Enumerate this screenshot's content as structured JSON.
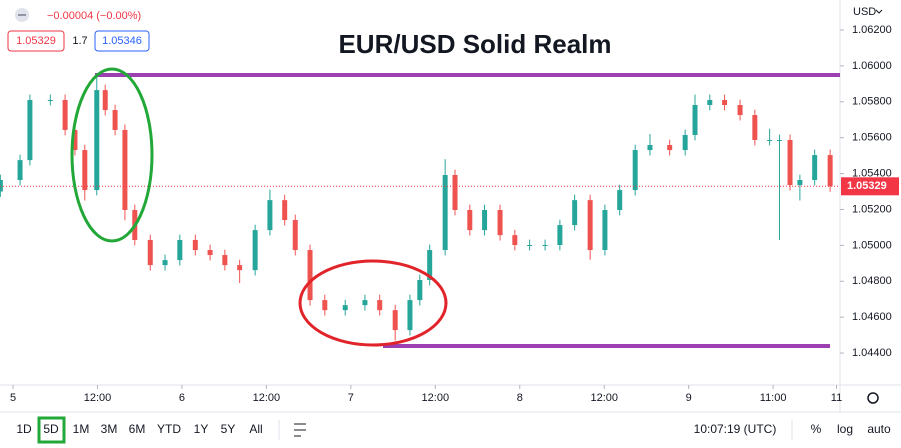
{
  "header": {
    "change": "−0.00004 (−0.00%)",
    "bid": "1.05329",
    "spread": "1.7",
    "ask": "1.05346",
    "currency": "USD"
  },
  "chart_data": {
    "type": "candlestick",
    "title": "EUR/USD Solid Realm",
    "x": [
      -1.8,
      1.0,
      2.4,
      5.3,
      7.4,
      8.8,
      10.2,
      11.9,
      13.1,
      14.5,
      15.9,
      17.3,
      19.5,
      21.6,
      23.7,
      25.9,
      28.0,
      30.1,
      32.2,
      34.4,
      36.5,
      38.6,
      40.1,
      42.2,
      44.3,
      47.2,
      50.0,
      52.1,
      54.3,
      56.4,
      57.8,
      59.2,
      61.4,
      62.8,
      64.9,
      67.0,
      69.2,
      71.3,
      73.4,
      75.6,
      77.7,
      79.8,
      82.0,
      84.1,
      86.2,
      88.4,
      90.5,
      93.3,
      95.5,
      96.9,
      99.0,
      101.1,
      103.3,
      105.4,
      107.5,
      108.9,
      110.4,
      111.8,
      113.9,
      116.1
    ],
    "open": [
      1.053,
      1.05364,
      1.05475,
      1.0581,
      1.0581,
      1.05643,
      1.05531,
      1.05308,
      1.05865,
      1.05754,
      1.05643,
      1.05197,
      1.0503,
      1.0489,
      1.04918,
      1.0503,
      1.04974,
      1.04946,
      1.0489,
      1.04862,
      1.05085,
      1.05252,
      1.05141,
      1.04974,
      1.04695,
      1.04639,
      1.04667,
      1.04695,
      1.04639,
      1.04528,
      1.04695,
      1.04807,
      1.04974,
      1.05392,
      1.05197,
      1.05085,
      1.05197,
      1.05057,
      1.05002,
      1.05002,
      1.05002,
      1.05113,
      1.05252,
      1.04974,
      1.05197,
      1.05308,
      1.05531,
      1.05559,
      1.05531,
      1.05615,
      1.05782,
      1.0581,
      1.05782,
      1.05726,
      1.05587,
      1.05587,
      1.05587,
      1.05336,
      1.05364,
      1.05503
    ],
    "high": [
      1.05394,
      1.05505,
      1.0584,
      1.0584,
      1.0584,
      1.05673,
      1.05561,
      1.05949,
      1.05895,
      1.05784,
      1.05673,
      1.05227,
      1.0506,
      1.04948,
      1.0506,
      1.0506,
      1.05004,
      1.04976,
      1.0492,
      1.05115,
      1.0531,
      1.05282,
      1.05171,
      1.05004,
      1.04725,
      1.04697,
      1.04725,
      1.04725,
      1.04669,
      1.04725,
      1.04837,
      1.05004,
      1.0548,
      1.05422,
      1.05227,
      1.05227,
      1.05227,
      1.05087,
      1.05032,
      1.05032,
      1.05143,
      1.05282,
      1.05282,
      1.05227,
      1.05338,
      1.05561,
      1.0562,
      1.05589,
      1.05645,
      1.0584,
      1.0584,
      1.0584,
      1.05812,
      1.05756,
      1.0565,
      1.05617,
      1.05617,
      1.05394,
      1.05533,
      1.05533
    ],
    "low": [
      1.0527,
      1.05334,
      1.05445,
      1.0578,
      1.05613,
      1.05501,
      1.0525,
      1.05278,
      1.05724,
      1.05613,
      1.0514,
      1.05,
      1.0486,
      1.0486,
      1.04888,
      1.04944,
      1.04916,
      1.0486,
      1.0479,
      1.04832,
      1.05055,
      1.05111,
      1.04944,
      1.04665,
      1.04609,
      1.04609,
      1.04637,
      1.04609,
      1.0447,
      1.04498,
      1.04665,
      1.04777,
      1.04944,
      1.05167,
      1.05055,
      1.05055,
      1.05027,
      1.04972,
      1.04972,
      1.04972,
      1.04972,
      1.05083,
      1.0492,
      1.04944,
      1.05167,
      1.05278,
      1.05501,
      1.05501,
      1.05501,
      1.05585,
      1.05752,
      1.05752,
      1.05696,
      1.05557,
      1.05557,
      1.0503,
      1.05306,
      1.0525,
      1.05334,
      1.05299
    ],
    "close": [
      1.05364,
      1.05475,
      1.0581,
      1.0581,
      1.05643,
      1.05531,
      1.05308,
      1.05865,
      1.05754,
      1.05643,
      1.05197,
      1.0503,
      1.0489,
      1.04918,
      1.0503,
      1.04974,
      1.04946,
      1.0489,
      1.04862,
      1.05085,
      1.05252,
      1.05141,
      1.04974,
      1.04695,
      1.04639,
      1.04667,
      1.04695,
      1.04639,
      1.04528,
      1.04695,
      1.04807,
      1.04974,
      1.05392,
      1.05197,
      1.05085,
      1.05197,
      1.05057,
      1.05002,
      1.05002,
      1.05002,
      1.05113,
      1.05252,
      1.04974,
      1.05197,
      1.05308,
      1.05531,
      1.05559,
      1.05531,
      1.05615,
      1.05782,
      1.0581,
      1.05782,
      1.05726,
      1.05587,
      1.05587,
      1.05587,
      1.05336,
      1.05364,
      1.05503,
      1.05329
    ],
    "up_color": "#26a69a",
    "down_color": "#ef5350",
    "last_price": 1.05329,
    "last_price_color": "#f23645",
    "xlim": [
      -1.85,
      117.5
    ],
    "xticks": [
      {
        "value": 0,
        "label": "5"
      },
      {
        "value": 12,
        "label": "12:00"
      },
      {
        "value": 24,
        "label": "6"
      },
      {
        "value": 36,
        "label": "12:00"
      },
      {
        "value": 48,
        "label": "7"
      },
      {
        "value": 60,
        "label": "12:00"
      },
      {
        "value": 72,
        "label": "8"
      },
      {
        "value": 84,
        "label": "12:00"
      },
      {
        "value": 96,
        "label": "9"
      },
      {
        "value": 108,
        "label": "11:00"
      },
      {
        "value": 117,
        "label": "11"
      }
    ],
    "ylim": [
      1.04222,
      1.06367
    ],
    "yticks": [
      {
        "value": 1.062,
        "label": "1.06200"
      },
      {
        "value": 1.06,
        "label": "1.06000"
      },
      {
        "value": 1.058,
        "label": "1.05800"
      },
      {
        "value": 1.056,
        "label": "1.05600"
      },
      {
        "value": 1.054,
        "label": "1.05400"
      },
      {
        "value": 1.052,
        "label": "1.05200"
      },
      {
        "value": 1.05,
        "label": "1.05000"
      },
      {
        "value": 1.048,
        "label": "1.04800"
      },
      {
        "value": 1.046,
        "label": "1.04600"
      },
      {
        "value": 1.044,
        "label": "1.04400"
      }
    ],
    "grid": false
  },
  "toolbar": {
    "ranges": [
      "1D",
      "5D",
      "1M",
      "3M",
      "6M",
      "YTD",
      "1Y",
      "5Y",
      "All"
    ],
    "time": "10:07:19 (UTC)",
    "options": [
      "%",
      "log",
      "auto"
    ]
  }
}
